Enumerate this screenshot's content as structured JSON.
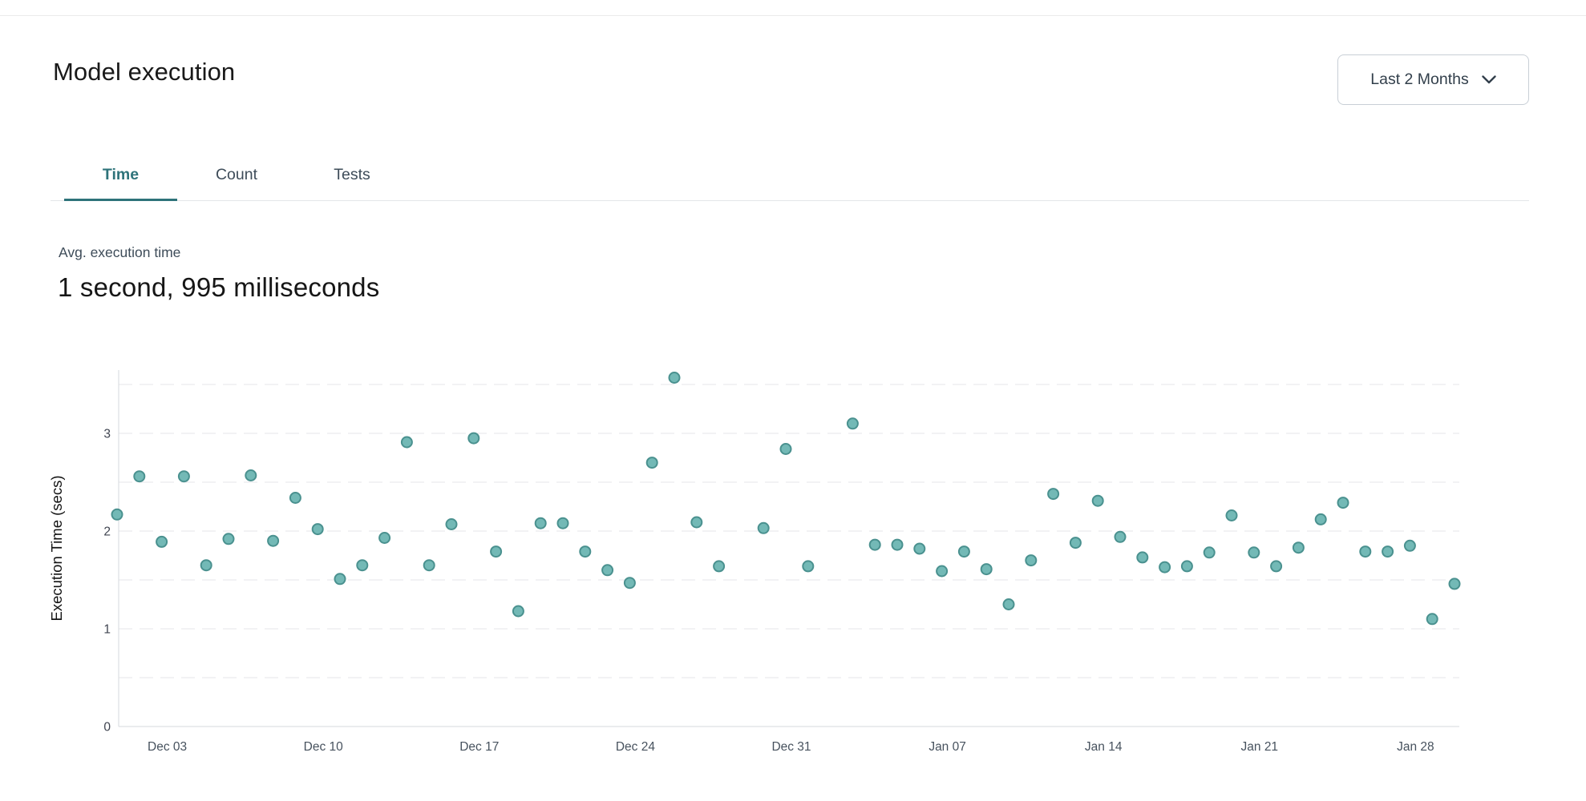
{
  "header": {
    "title": "Model execution",
    "range_label": "Last 2 Months"
  },
  "tabs": [
    {
      "label": "Time",
      "active": true
    },
    {
      "label": "Count",
      "active": false
    },
    {
      "label": "Tests",
      "active": false
    }
  ],
  "stat": {
    "label": "Avg. execution time",
    "value": "1 second, 995 milliseconds"
  },
  "chart_data": {
    "type": "scatter",
    "title": "",
    "xlabel": "",
    "ylabel": "Execution Time (secs)",
    "ylim": [
      0,
      3.64
    ],
    "grid": "dashed horizontal every 0.5",
    "legend": "none",
    "y_ticks": [
      0,
      1,
      2,
      3
    ],
    "gridline_values": [
      0.5,
      1,
      1.5,
      2,
      2.5,
      3,
      3.5
    ],
    "x_ticks": [
      {
        "day": 2,
        "label": "Dec 03"
      },
      {
        "day": 9,
        "label": "Dec 10"
      },
      {
        "day": 16,
        "label": "Dec 17"
      },
      {
        "day": 23,
        "label": "Dec 24"
      },
      {
        "day": 30,
        "label": "Dec 31"
      },
      {
        "day": 37,
        "label": "Jan 07"
      },
      {
        "day": 44,
        "label": "Jan 14"
      },
      {
        "day": 51,
        "label": "Jan 21"
      },
      {
        "day": 58,
        "label": "Jan 28"
      }
    ],
    "points": [
      {
        "day": 0,
        "date": "Dec 01",
        "value": 2.17
      },
      {
        "day": 1,
        "date": "Dec 02",
        "value": 2.56
      },
      {
        "day": 2,
        "date": "Dec 03",
        "value": 1.89
      },
      {
        "day": 3,
        "date": "Dec 04",
        "value": 2.56
      },
      {
        "day": 4,
        "date": "Dec 05",
        "value": 1.65
      },
      {
        "day": 5,
        "date": "Dec 06",
        "value": 1.92
      },
      {
        "day": 6,
        "date": "Dec 07",
        "value": 2.57
      },
      {
        "day": 7,
        "date": "Dec 08",
        "value": 1.9
      },
      {
        "day": 8,
        "date": "Dec 09",
        "value": 2.34
      },
      {
        "day": 9,
        "date": "Dec 10",
        "value": 2.02
      },
      {
        "day": 10,
        "date": "Dec 11",
        "value": 1.51
      },
      {
        "day": 11,
        "date": "Dec 12",
        "value": 1.65
      },
      {
        "day": 12,
        "date": "Dec 13",
        "value": 1.93
      },
      {
        "day": 13,
        "date": "Dec 14",
        "value": 2.91
      },
      {
        "day": 14,
        "date": "Dec 15",
        "value": 1.65
      },
      {
        "day": 15,
        "date": "Dec 16",
        "value": 2.07
      },
      {
        "day": 16,
        "date": "Dec 17",
        "value": 2.95
      },
      {
        "day": 17,
        "date": "Dec 18",
        "value": 1.79
      },
      {
        "day": 18,
        "date": "Dec 19",
        "value": 1.18
      },
      {
        "day": 19,
        "date": "Dec 20",
        "value": 2.08
      },
      {
        "day": 20,
        "date": "Dec 21",
        "value": 2.08
      },
      {
        "day": 21,
        "date": "Dec 22",
        "value": 1.79
      },
      {
        "day": 22,
        "date": "Dec 23",
        "value": 1.6
      },
      {
        "day": 23,
        "date": "Dec 24",
        "value": 1.47
      },
      {
        "day": 24,
        "date": "Dec 25",
        "value": 2.7
      },
      {
        "day": 25,
        "date": "Dec 26",
        "value": 3.57
      },
      {
        "day": 26,
        "date": "Dec 27",
        "value": 2.09
      },
      {
        "day": 27,
        "date": "Dec 28",
        "value": 1.64
      },
      {
        "day": 29,
        "date": "Dec 30",
        "value": 2.03
      },
      {
        "day": 30,
        "date": "Dec 31",
        "value": 2.84
      },
      {
        "day": 31,
        "date": "Jan 01",
        "value": 1.64
      },
      {
        "day": 33,
        "date": "Jan 03",
        "value": 3.1
      },
      {
        "day": 34,
        "date": "Jan 04",
        "value": 1.86
      },
      {
        "day": 35,
        "date": "Jan 05",
        "value": 1.86
      },
      {
        "day": 36,
        "date": "Jan 06",
        "value": 1.82
      },
      {
        "day": 37,
        "date": "Jan 07",
        "value": 1.59
      },
      {
        "day": 38,
        "date": "Jan 08",
        "value": 1.79
      },
      {
        "day": 39,
        "date": "Jan 09",
        "value": 1.61
      },
      {
        "day": 40,
        "date": "Jan 10",
        "value": 1.25
      },
      {
        "day": 41,
        "date": "Jan 11",
        "value": 1.7
      },
      {
        "day": 42,
        "date": "Jan 12",
        "value": 2.38
      },
      {
        "day": 43,
        "date": "Jan 13",
        "value": 1.88
      },
      {
        "day": 44,
        "date": "Jan 14",
        "value": 2.31
      },
      {
        "day": 45,
        "date": "Jan 15",
        "value": 1.94
      },
      {
        "day": 46,
        "date": "Jan 16",
        "value": 1.73
      },
      {
        "day": 47,
        "date": "Jan 17",
        "value": 1.63
      },
      {
        "day": 48,
        "date": "Jan 18",
        "value": 1.64
      },
      {
        "day": 49,
        "date": "Jan 19",
        "value": 1.78
      },
      {
        "day": 50,
        "date": "Jan 20",
        "value": 2.16
      },
      {
        "day": 51,
        "date": "Jan 21",
        "value": 1.78
      },
      {
        "day": 52,
        "date": "Jan 22",
        "value": 1.64
      },
      {
        "day": 53,
        "date": "Jan 23",
        "value": 1.83
      },
      {
        "day": 54,
        "date": "Jan 24",
        "value": 2.12
      },
      {
        "day": 55,
        "date": "Jan 25",
        "value": 2.29
      },
      {
        "day": 56,
        "date": "Jan 26",
        "value": 1.79
      },
      {
        "day": 57,
        "date": "Jan 27",
        "value": 1.79
      },
      {
        "day": 58,
        "date": "Jan 28",
        "value": 1.85
      },
      {
        "day": 59,
        "date": "Jan 29",
        "value": 1.1
      },
      {
        "day": 60,
        "date": "Jan 30",
        "value": 1.46
      }
    ],
    "colors": {
      "point_fill": "#73b9b6",
      "point_stroke": "#4a918f",
      "grid": "#e5e6ea",
      "axis": "#d6d9dd",
      "tick_text": "#3f4450",
      "x_label_text": "#47525e",
      "axis_title_text": "#131313",
      "accent_teal": "#2e737a"
    }
  }
}
